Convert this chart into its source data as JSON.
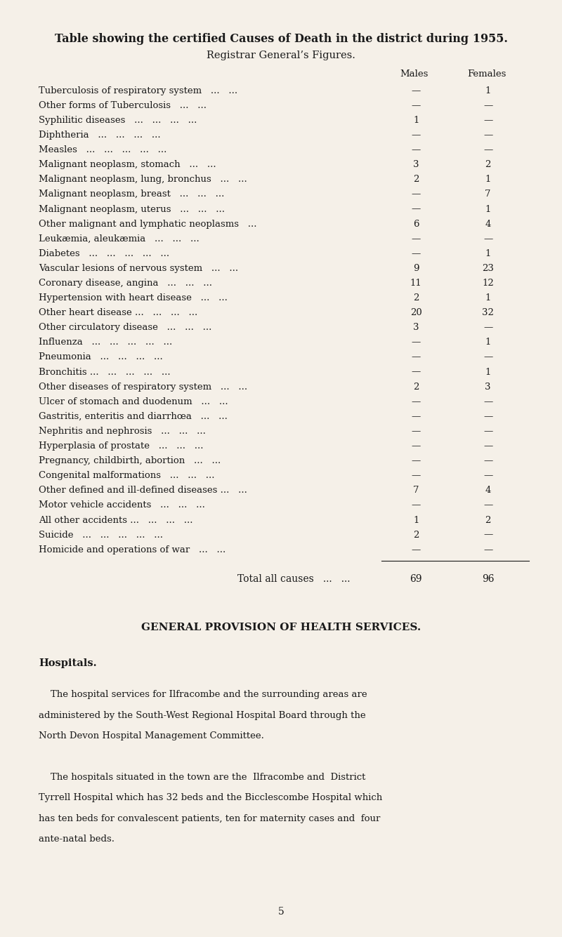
{
  "bg_color": "#f5f0e8",
  "text_color": "#1a1a1a",
  "title": "Table showing the certified Causes of Death in the district during 1955.",
  "subtitle": "Registrar General’s Figures.",
  "table_data": [
    [
      "Tuberculosis of respiratory system   ...   ...",
      "—",
      "1"
    ],
    [
      "Other forms of Tuberculosis   ...   ...",
      "—",
      "—"
    ],
    [
      "Syphilitic diseases   ...   ...   ...   ...",
      "1",
      "—"
    ],
    [
      "Diphtheria   ...   ...   ...   ...",
      "—",
      "—"
    ],
    [
      "Measles   ...   ...   ...   ...   ...",
      "—",
      "—"
    ],
    [
      "Malignant neoplasm, stomach   ...   ...",
      "3",
      "2"
    ],
    [
      "Malignant neoplasm, lung, bronchus   ...   ...",
      "2",
      "1"
    ],
    [
      "Malignant neoplasm, breast   ...   ...   ...",
      "—",
      "7"
    ],
    [
      "Malignant neoplasm, uterus   ...   ...   ...",
      "—",
      "1"
    ],
    [
      "Other malignant and lymphatic neoplasms   ...",
      "6",
      "4"
    ],
    [
      "Leukæmia, aleukæmia   ...   ...   ...",
      "—",
      "—"
    ],
    [
      "Diabetes   ...   ...   ...   ...   ...",
      "—",
      "1"
    ],
    [
      "Vascular lesions of nervous system   ...   ...",
      "9",
      "23"
    ],
    [
      "Coronary disease, angina   ...   ...   ...",
      "11",
      "12"
    ],
    [
      "Hypertension with heart disease   ...   ...",
      "2",
      "1"
    ],
    [
      "Other heart disease ...   ...   ...   ...",
      "20",
      "32"
    ],
    [
      "Other circulatory disease   ...   ...   ...",
      "3",
      "—"
    ],
    [
      "Influenza   ...   ...   ...   ...   ...",
      "—",
      "1"
    ],
    [
      "Pneumonia   ...   ...   ...   ...",
      "—",
      "—"
    ],
    [
      "Bronchitis ...   ...   ...   ...   ...",
      "—",
      "1"
    ],
    [
      "Other diseases of respiratory system   ...   ...",
      "2",
      "3"
    ],
    [
      "Ulcer of stomach and duodenum   ...   ...",
      "—",
      "—"
    ],
    [
      "Gastritis, enteritis and diarrhœa   ...   ...",
      "—",
      "—"
    ],
    [
      "Nephritis and nephrosis   ...   ...   ...",
      "—",
      "—"
    ],
    [
      "Hyperplasia of prostate   ...   ...   ...",
      "—",
      "—"
    ],
    [
      "Pregnancy, childbirth, abortion   ...   ...",
      "—",
      "—"
    ],
    [
      "Congenital malformations   ...   ...   ...",
      "—",
      "—"
    ],
    [
      "Other defined and ill-defined diseases ...   ...",
      "7",
      "4"
    ],
    [
      "Motor vehicle accidents   ...   ...   ...",
      "—",
      "—"
    ],
    [
      "All other accidents ...   ...   ...   ...",
      "1",
      "2"
    ],
    [
      "Suicide   ...   ...   ...   ...   ...",
      "2",
      "—"
    ],
    [
      "Homicide and operations of war   ...   ...",
      "—",
      "—"
    ]
  ],
  "total_label": "Total all causes   ...   ...",
  "total_males": "69",
  "total_females": "96",
  "section2_title": "GENERAL PROVISION OF HEALTH SERVICES.",
  "section2_subtitle": "Hospitals.",
  "para1_lines": [
    "    The hospital services for Ilfracombe and the surrounding areas are",
    "administered by the South-West Regional Hospital Board through the",
    "North Devon Hospital Management Committee."
  ],
  "para2_lines": [
    "    The hospitals situated in the town are the  Ilfracombe and  District",
    "Tyrrell Hospital which has 32 beds and the Bicclescombe Hospital which",
    "has ten beds for convalescent patients, ten for maternity cases and  four",
    "ante-natal beds."
  ],
  "page_number": "5",
  "title_fontsize": 11.5,
  "subtitle_fontsize": 10.5,
  "row_fontsize": 9.5,
  "header_fontsize": 9.5
}
